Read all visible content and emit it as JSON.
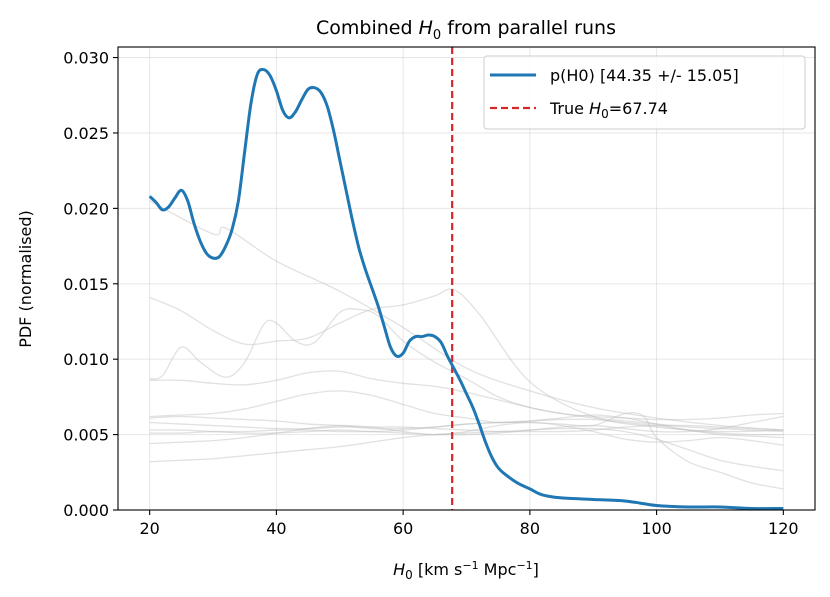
{
  "chart_data": {
    "type": "line",
    "title_prefix": "Combined ",
    "title_symbol": "H",
    "title_subscript": "0",
    "title_suffix": " from parallel runs",
    "xlabel_symbol": "H",
    "xlabel_subscript": "0",
    "xlabel_unit_open": " [km s",
    "xlabel_exp1": "−1",
    "xlabel_unit_mid": " Mpc",
    "xlabel_exp2": "−1",
    "xlabel_unit_close": "]",
    "ylabel": "PDF (normalised)",
    "xlim": [
      15,
      125
    ],
    "ylim": [
      0,
      0.0307
    ],
    "x_ticks": [
      20,
      40,
      60,
      80,
      100,
      120
    ],
    "x_tick_labels": [
      "20",
      "40",
      "60",
      "80",
      "100",
      "120"
    ],
    "y_ticks": [
      0,
      0.005,
      0.01,
      0.015,
      0.02,
      0.025,
      0.03
    ],
    "y_tick_labels": [
      "0.000",
      "0.005",
      "0.010",
      "0.015",
      "0.020",
      "0.025",
      "0.030"
    ],
    "grid": true,
    "legend_position": "top-right",
    "combined": {
      "name": "p(H0) [44.35 +/- 15.05]",
      "color": "#1f77b4",
      "x": [
        20,
        21,
        22,
        23,
        24,
        25,
        26,
        27,
        28,
        29,
        30,
        31,
        32,
        33,
        34,
        35,
        36,
        37,
        38,
        39,
        40,
        41,
        42,
        43,
        44,
        45,
        46,
        47,
        48,
        49,
        50,
        51,
        52,
        53,
        54,
        55,
        56,
        57,
        58,
        59,
        60,
        61,
        62,
        63,
        64,
        65,
        66,
        67,
        68,
        69,
        70,
        71,
        72,
        73,
        74,
        75,
        76,
        78,
        80,
        82,
        85,
        90,
        95,
        100,
        105,
        110,
        115,
        120
      ],
      "y": [
        0.0208,
        0.0204,
        0.0199,
        0.0201,
        0.0207,
        0.0212,
        0.0205,
        0.019,
        0.0178,
        0.017,
        0.0167,
        0.0168,
        0.0175,
        0.0186,
        0.0205,
        0.0238,
        0.027,
        0.0289,
        0.0292,
        0.0288,
        0.0278,
        0.0265,
        0.026,
        0.0264,
        0.0272,
        0.0279,
        0.028,
        0.0277,
        0.0268,
        0.0252,
        0.0232,
        0.0212,
        0.0192,
        0.0174,
        0.016,
        0.0148,
        0.0136,
        0.0122,
        0.0108,
        0.0102,
        0.0104,
        0.0112,
        0.0115,
        0.0115,
        0.0116,
        0.0115,
        0.0111,
        0.0102,
        0.0094,
        0.0086,
        0.0077,
        0.0068,
        0.0057,
        0.0045,
        0.0035,
        0.0028,
        0.0024,
        0.0018,
        0.0014,
        0.001,
        0.0008,
        0.0007,
        0.0006,
        0.0003,
        0.0002,
        0.0002,
        0.0001,
        0.0001
      ]
    },
    "true_value": {
      "label_prefix": "True ",
      "label_symbol": "H",
      "label_subscript": "0",
      "label_suffix": "=67.74",
      "x": 67.74,
      "color": "#d62728"
    },
    "runs": [
      {
        "x": [
          20,
          30,
          32,
          40,
          50,
          60,
          70,
          80,
          90,
          100,
          110,
          120
        ],
        "y": [
          0.0205,
          0.0183,
          0.0187,
          0.0165,
          0.0145,
          0.0121,
          0.0094,
          0.0079,
          0.0068,
          0.0061,
          0.0056,
          0.0053
        ]
      },
      {
        "x": [
          20,
          25,
          30,
          35,
          40,
          45,
          50,
          55,
          60,
          65,
          68,
          72,
          80,
          90,
          100,
          110,
          120
        ],
        "y": [
          0.0141,
          0.0132,
          0.0119,
          0.011,
          0.0112,
          0.0114,
          0.0124,
          0.0133,
          0.0136,
          0.0142,
          0.0146,
          0.013,
          0.0085,
          0.0062,
          0.0055,
          0.0052,
          0.0053
        ]
      },
      {
        "x": [
          20,
          22,
          25,
          28,
          32,
          35,
          38,
          40,
          43,
          46,
          50,
          53,
          56,
          60,
          65,
          70,
          75,
          80,
          85,
          90,
          95,
          100,
          105,
          110,
          115,
          120
        ],
        "y": [
          0.0087,
          0.0089,
          0.0108,
          0.0098,
          0.0088,
          0.0098,
          0.0123,
          0.0124,
          0.0112,
          0.0111,
          0.0131,
          0.0133,
          0.0129,
          0.0112,
          0.0098,
          0.0087,
          0.0075,
          0.0068,
          0.0064,
          0.0061,
          0.0059,
          0.0057,
          0.0055,
          0.0054,
          0.0053,
          0.0052
        ]
      },
      {
        "x": [
          20,
          25,
          30,
          35,
          40,
          45,
          50,
          55,
          60,
          65,
          70,
          75,
          80,
          85,
          90,
          95,
          100,
          105,
          110,
          115,
          120
        ],
        "y": [
          0.0086,
          0.0086,
          0.0084,
          0.0083,
          0.0086,
          0.0091,
          0.0092,
          0.0087,
          0.0084,
          0.0082,
          0.0078,
          0.0073,
          0.0068,
          0.0064,
          0.0062,
          0.0061,
          0.006,
          0.006,
          0.0061,
          0.0063,
          0.0064
        ]
      },
      {
        "x": [
          20,
          25,
          30,
          35,
          40,
          45,
          50,
          55,
          60,
          65,
          70,
          75,
          80,
          85,
          90,
          95,
          100,
          105,
          110,
          115,
          120
        ],
        "y": [
          0.0062,
          0.0063,
          0.0064,
          0.0067,
          0.0072,
          0.0077,
          0.0079,
          0.0076,
          0.007,
          0.0064,
          0.0061,
          0.0058,
          0.0059,
          0.0061,
          0.0063,
          0.0061,
          0.0057,
          0.0053,
          0.005,
          0.0049,
          0.0048
        ]
      },
      {
        "x": [
          20,
          25,
          30,
          35,
          40,
          45,
          50,
          55,
          60,
          65,
          70,
          75,
          80,
          85,
          90,
          95,
          100,
          105,
          110,
          115,
          120
        ],
        "y": [
          0.0061,
          0.0062,
          0.0061,
          0.006,
          0.0059,
          0.0057,
          0.0056,
          0.0054,
          0.0054,
          0.0055,
          0.0057,
          0.0058,
          0.0059,
          0.006,
          0.006,
          0.0058,
          0.0056,
          0.0053,
          0.0051,
          0.005,
          0.005
        ]
      },
      {
        "x": [
          20,
          25,
          30,
          35,
          40,
          45,
          50,
          55,
          60,
          65,
          70,
          75,
          80,
          85,
          90,
          95,
          100,
          105,
          110,
          115,
          120
        ],
        "y": [
          0.0058,
          0.0057,
          0.0056,
          0.0055,
          0.0054,
          0.0054,
          0.0055,
          0.0055,
          0.0055,
          0.0054,
          0.0053,
          0.0052,
          0.0052,
          0.0052,
          0.0053,
          0.0055,
          0.0056,
          0.0056,
          0.0055,
          0.0054,
          0.0053
        ]
      },
      {
        "x": [
          20,
          25,
          30,
          35,
          40,
          45,
          50,
          55,
          60,
          65,
          70,
          75,
          80,
          85,
          90,
          95,
          100,
          105,
          110,
          115,
          120
        ],
        "y": [
          0.0053,
          0.0053,
          0.0052,
          0.0051,
          0.0051,
          0.0052,
          0.0053,
          0.0052,
          0.0051,
          0.005,
          0.005,
          0.0051,
          0.0053,
          0.0055,
          0.0056,
          0.0054,
          0.0052,
          0.0052,
          0.0054,
          0.0058,
          0.0062
        ]
      },
      {
        "x": [
          20,
          25,
          30,
          35,
          40,
          45,
          50,
          55,
          60,
          65,
          70,
          75,
          80,
          85,
          90,
          95,
          100,
          105,
          110,
          115,
          120
        ],
        "y": [
          0.0044,
          0.0045,
          0.0046,
          0.0048,
          0.0051,
          0.0054,
          0.0056,
          0.0055,
          0.0052,
          0.005,
          0.0052,
          0.0056,
          0.0058,
          0.0056,
          0.0052,
          0.0047,
          0.0045,
          0.0046,
          0.0048,
          0.0046,
          0.0043
        ]
      },
      {
        "x": [
          20,
          25,
          30,
          35,
          40,
          45,
          50,
          55,
          60,
          65,
          70,
          75,
          80,
          85,
          90,
          95,
          100,
          105,
          110,
          115,
          120
        ],
        "y": [
          0.0032,
          0.0033,
          0.0034,
          0.0036,
          0.0038,
          0.004,
          0.0042,
          0.0045,
          0.0048,
          0.005,
          0.0051,
          0.0052,
          0.0053,
          0.0054,
          0.0054,
          0.0052,
          0.0047,
          0.004,
          0.0033,
          0.0029,
          0.0026
        ]
      },
      {
        "x": [
          20,
          25,
          30,
          35,
          40,
          45,
          50,
          55,
          60,
          65,
          70,
          75,
          80,
          85,
          90,
          95,
          98,
          100,
          105,
          110,
          115,
          120
        ],
        "y": [
          0.0051,
          0.0051,
          0.0052,
          0.0052,
          0.0053,
          0.0053,
          0.0052,
          0.0052,
          0.0053,
          0.0055,
          0.0057,
          0.0058,
          0.0058,
          0.0057,
          0.0056,
          0.0064,
          0.0062,
          0.0048,
          0.0032,
          0.0025,
          0.0018,
          0.0014
        ]
      }
    ]
  }
}
